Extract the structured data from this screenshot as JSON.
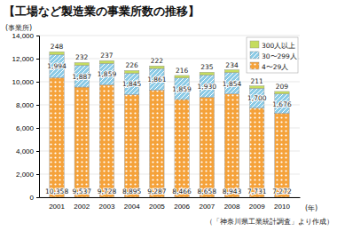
{
  "chart_data": {
    "type": "bar",
    "title": "【工場など製造業の事業所数の推移】",
    "y_label": "(事業所)",
    "x_label": "(年)",
    "source": "（「神奈川県工業統計調査」より作成）",
    "categories": [
      "2001",
      "2002",
      "2003",
      "2004",
      "2005",
      "2006",
      "2007",
      "2008",
      "2009",
      "2010"
    ],
    "series": [
      {
        "name": "4〜29人",
        "color": "#f5a23a",
        "values": [
          10358,
          9537,
          9728,
          8895,
          9287,
          8466,
          8658,
          8943,
          7731,
          7272
        ],
        "value_labels": [
          "10,358",
          "9,537",
          "9,728",
          "8,895",
          "9,287",
          "8,466",
          "8,658",
          "8,943",
          "7,731",
          "7,272"
        ]
      },
      {
        "name": "30〜299人",
        "color": "#8ccbe6",
        "values": [
          1994,
          1887,
          1859,
          1845,
          1861,
          1859,
          1930,
          1854,
          1700,
          1676
        ],
        "value_labels": [
          "1,994",
          "1,887",
          "1,859",
          "1,845",
          "1,861",
          "1,859",
          "1,930",
          "1,854",
          "1,700",
          "1,676"
        ]
      },
      {
        "name": "300人以上",
        "color": "#c5dc5e",
        "values": [
          248,
          232,
          237,
          226,
          222,
          216,
          235,
          234,
          211,
          209
        ]
      }
    ],
    "stacked": true,
    "data_labels": true,
    "legend": "upper right",
    "grid": true,
    "ylim": [
      0,
      14000
    ],
    "yticks": [
      0,
      {
        "value": 2000,
        "label": "2,000"
      },
      {
        "value": 4000,
        "label": "4,000"
      },
      {
        "value": 6000,
        "label": "6,000"
      },
      {
        "value": 8000,
        "label": "8,000"
      },
      {
        "value": 10000,
        "label": "10,000"
      },
      {
        "value": 12000,
        "label": "12,000"
      },
      {
        "value": 14000,
        "label": "14,000"
      }
    ]
  }
}
